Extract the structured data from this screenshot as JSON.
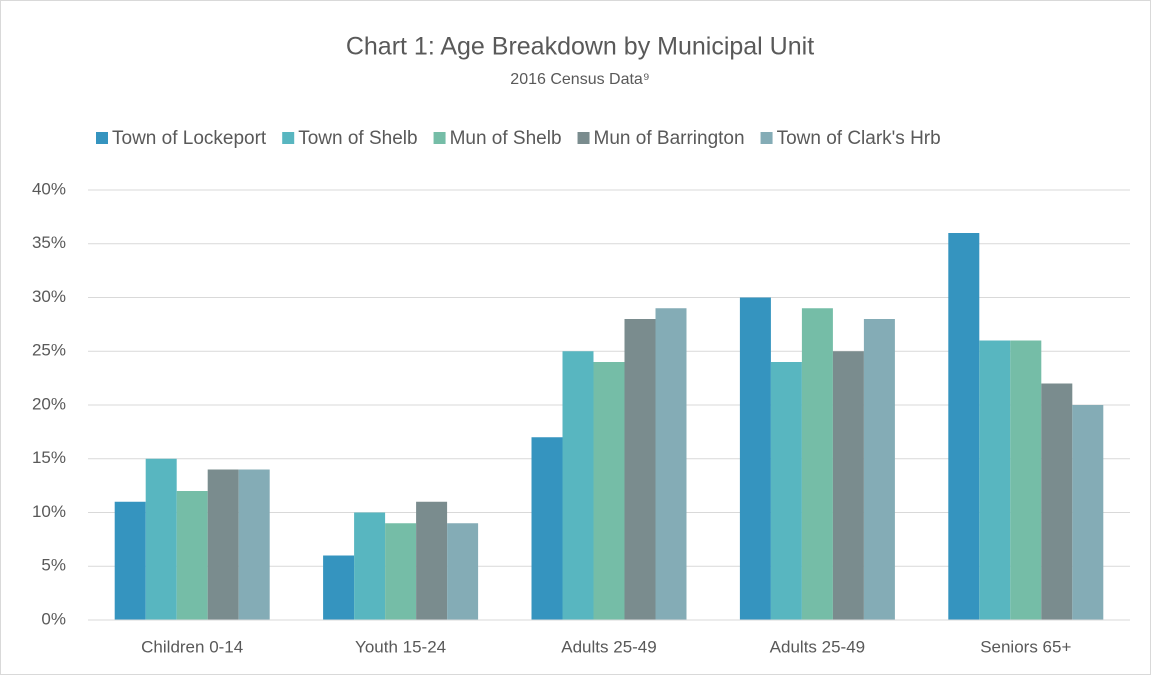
{
  "chart_data": {
    "type": "bar",
    "title": "Chart 1: Age Breakdown by Municipal Unit",
    "subtitle": "2016 Census Data⁹",
    "categories": [
      "Children 0-14",
      "Youth 15-24",
      "Adults 25-49",
      "Adults 25-49",
      "Seniors 65+"
    ],
    "series": [
      {
        "name": "Town of Lockeport",
        "color": "#3594bf",
        "values": [
          11,
          6,
          17,
          30,
          36
        ]
      },
      {
        "name": "Town of Shelb",
        "color": "#58b6c0",
        "values": [
          15,
          10,
          25,
          24,
          26
        ]
      },
      {
        "name": "Mun of Shelb",
        "color": "#75bda7",
        "values": [
          12,
          9,
          24,
          29,
          26
        ]
      },
      {
        "name": "Mun of Barrington",
        "color": "#7a8c8e",
        "values": [
          14,
          11,
          28,
          25,
          22
        ]
      },
      {
        "name": "Town of Clark's Hrb",
        "color": "#84acb6",
        "values": [
          14,
          9,
          29,
          28,
          20
        ]
      }
    ],
    "ylim": [
      0,
      40
    ],
    "yticks": [
      {
        "value": 0,
        "label": "0%"
      },
      {
        "value": 5,
        "label": "5%"
      },
      {
        "value": 10,
        "label": "10%"
      },
      {
        "value": 15,
        "label": "15%"
      },
      {
        "value": 20,
        "label": "20%"
      },
      {
        "value": 25,
        "label": "25%"
      },
      {
        "value": 30,
        "label": "30%"
      },
      {
        "value": 35,
        "label": "35%"
      },
      {
        "value": 40,
        "label": "40%"
      }
    ],
    "grid": true,
    "legend": "top"
  }
}
